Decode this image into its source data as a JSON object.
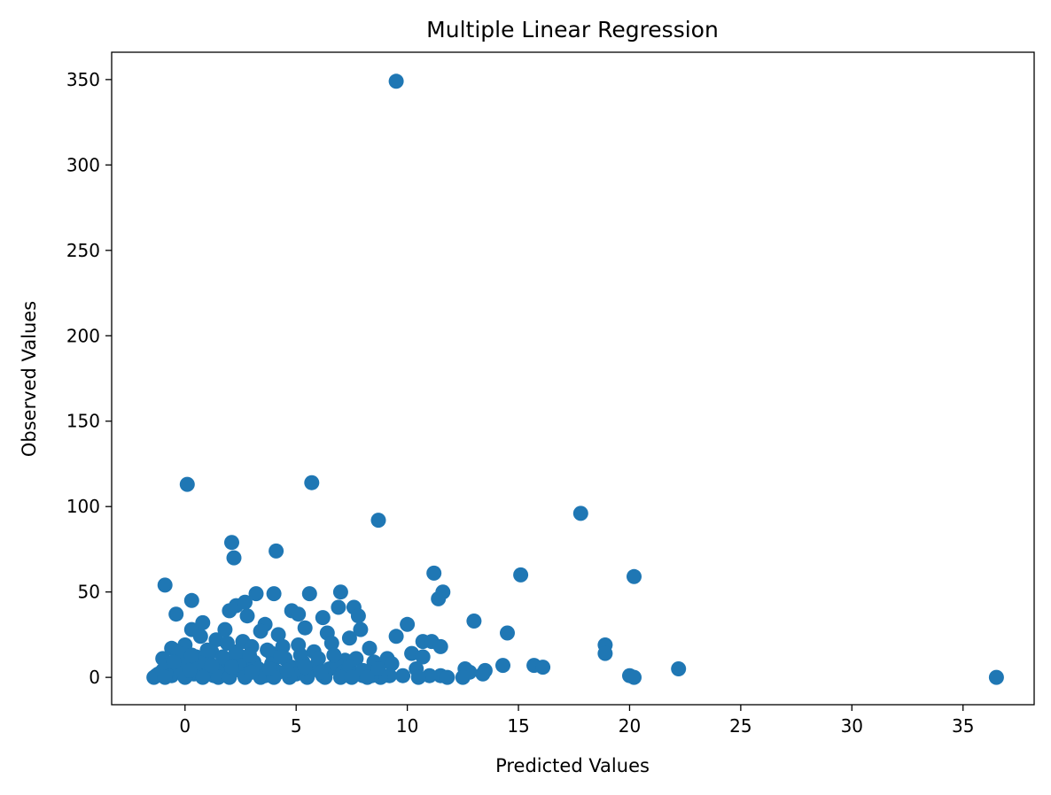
{
  "chart_data": {
    "type": "scatter",
    "title": "Multiple Linear Regression",
    "xlabel": "Predicted Values",
    "ylabel": "Observed Values",
    "xlim": [
      -3.3,
      38.2
    ],
    "ylim": [
      -16,
      366
    ],
    "xticks": [
      0,
      5,
      10,
      15,
      20,
      25,
      30,
      35
    ],
    "yticks": [
      0,
      50,
      100,
      150,
      200,
      250,
      300,
      350
    ],
    "grid": false,
    "color": "#1f77b4",
    "points": [
      [
        9.5,
        349
      ],
      [
        0.1,
        113
      ],
      [
        5.7,
        114
      ],
      [
        8.7,
        92
      ],
      [
        17.8,
        96
      ],
      [
        2.1,
        79
      ],
      [
        2.2,
        70
      ],
      [
        4.1,
        74
      ],
      [
        11.2,
        61
      ],
      [
        15.1,
        60
      ],
      [
        20.2,
        59
      ],
      [
        -0.9,
        54
      ],
      [
        0.3,
        45
      ],
      [
        3.2,
        49
      ],
      [
        4.0,
        49
      ],
      [
        5.6,
        49
      ],
      [
        7.0,
        50
      ],
      [
        11.6,
        50
      ],
      [
        11.4,
        46
      ],
      [
        2.0,
        39
      ],
      [
        2.3,
        42
      ],
      [
        2.7,
        44
      ],
      [
        2.8,
        36
      ],
      [
        -0.4,
        37
      ],
      [
        0.8,
        32
      ],
      [
        3.6,
        31
      ],
      [
        4.8,
        39
      ],
      [
        5.1,
        37
      ],
      [
        6.2,
        35
      ],
      [
        6.9,
        41
      ],
      [
        7.6,
        41
      ],
      [
        7.8,
        36
      ],
      [
        10.0,
        31
      ],
      [
        13.0,
        33
      ],
      [
        0.3,
        28
      ],
      [
        1.8,
        28
      ],
      [
        3.4,
        27
      ],
      [
        4.2,
        25
      ],
      [
        5.4,
        29
      ],
      [
        6.4,
        26
      ],
      [
        7.9,
        28
      ],
      [
        9.5,
        24
      ],
      [
        14.5,
        26
      ],
      [
        -0.6,
        17
      ],
      [
        0.0,
        19
      ],
      [
        0.7,
        24
      ],
      [
        1.4,
        22
      ],
      [
        1.9,
        20
      ],
      [
        2.6,
        21
      ],
      [
        3.0,
        18
      ],
      [
        4.4,
        18
      ],
      [
        5.1,
        19
      ],
      [
        6.6,
        20
      ],
      [
        7.4,
        23
      ],
      [
        8.3,
        17
      ],
      [
        10.7,
        21
      ],
      [
        11.1,
        21
      ],
      [
        11.5,
        18
      ],
      [
        18.9,
        19
      ],
      [
        -1.0,
        11
      ],
      [
        -0.3,
        14
      ],
      [
        0.5,
        12
      ],
      [
        1.2,
        15
      ],
      [
        2.4,
        13
      ],
      [
        3.9,
        14
      ],
      [
        5.8,
        15
      ],
      [
        7.2,
        10
      ],
      [
        7.7,
        11
      ],
      [
        8.5,
        9
      ],
      [
        9.1,
        11
      ],
      [
        9.3,
        8
      ],
      [
        10.2,
        14
      ],
      [
        10.7,
        12
      ],
      [
        18.9,
        14
      ],
      [
        14.3,
        7
      ],
      [
        15.7,
        7
      ],
      [
        16.1,
        6
      ],
      [
        10.4,
        5
      ],
      [
        12.6,
        5
      ],
      [
        12.8,
        3
      ],
      [
        13.5,
        4
      ],
      [
        13.4,
        2
      ],
      [
        12.5,
        0
      ],
      [
        11.5,
        1
      ],
      [
        11.0,
        1
      ],
      [
        11.8,
        0
      ],
      [
        10.5,
        0
      ],
      [
        9.8,
        1
      ],
      [
        9.2,
        1
      ],
      [
        8.0,
        1
      ],
      [
        8.8,
        0
      ],
      [
        20.0,
        1
      ],
      [
        20.2,
        0
      ],
      [
        22.2,
        5
      ],
      [
        36.5,
        0
      ],
      [
        -1.4,
        0
      ],
      [
        -1.2,
        2
      ],
      [
        -1.0,
        4
      ],
      [
        -0.8,
        7
      ],
      [
        -0.6,
        1
      ],
      [
        -0.4,
        5
      ],
      [
        -0.2,
        3
      ],
      [
        0.1,
        8
      ],
      [
        0.4,
        2
      ],
      [
        0.6,
        6
      ],
      [
        0.9,
        9
      ],
      [
        1.1,
        3
      ],
      [
        1.3,
        1
      ],
      [
        1.6,
        5
      ],
      [
        1.9,
        10
      ],
      [
        2.2,
        4
      ],
      [
        2.5,
        7
      ],
      [
        2.8,
        2
      ],
      [
        3.1,
        9
      ],
      [
        3.3,
        5
      ],
      [
        3.6,
        1
      ],
      [
        3.9,
        8
      ],
      [
        4.2,
        3
      ],
      [
        4.5,
        11
      ],
      [
        4.8,
        6
      ],
      [
        5.0,
        2
      ],
      [
        5.3,
        9
      ],
      [
        5.6,
        4
      ],
      [
        5.9,
        7
      ],
      [
        6.2,
        1
      ],
      [
        6.5,
        5
      ],
      [
        6.8,
        8
      ],
      [
        7.1,
        3
      ],
      [
        7.4,
        6
      ],
      [
        7.7,
        2
      ],
      [
        8.0,
        4
      ],
      [
        8.4,
        1
      ],
      [
        8.7,
        5
      ],
      [
        -1.3,
        1
      ],
      [
        -0.9,
        0
      ],
      [
        -0.5,
        9
      ],
      [
        0.0,
        0
      ],
      [
        0.3,
        13
      ],
      [
        0.8,
        0
      ],
      [
        1.0,
        16
      ],
      [
        1.5,
        0
      ],
      [
        1.7,
        12
      ],
      [
        2.0,
        0
      ],
      [
        2.3,
        15
      ],
      [
        2.7,
        0
      ],
      [
        2.9,
        13
      ],
      [
        3.4,
        0
      ],
      [
        3.7,
        16
      ],
      [
        4.0,
        0
      ],
      [
        4.3,
        12
      ],
      [
        4.7,
        0
      ],
      [
        5.2,
        13
      ],
      [
        5.5,
        0
      ],
      [
        6.0,
        11
      ],
      [
        6.3,
        0
      ],
      [
        6.7,
        13
      ],
      [
        7.0,
        0
      ],
      [
        7.5,
        0
      ],
      [
        8.2,
        0
      ],
      [
        0.2,
        4
      ],
      [
        1.2,
        7
      ],
      [
        2.1,
        6
      ],
      [
        3.0,
        3
      ],
      [
        3.8,
        5
      ],
      [
        4.6,
        4
      ],
      [
        5.4,
        6
      ],
      [
        6.1,
        3
      ]
    ]
  }
}
